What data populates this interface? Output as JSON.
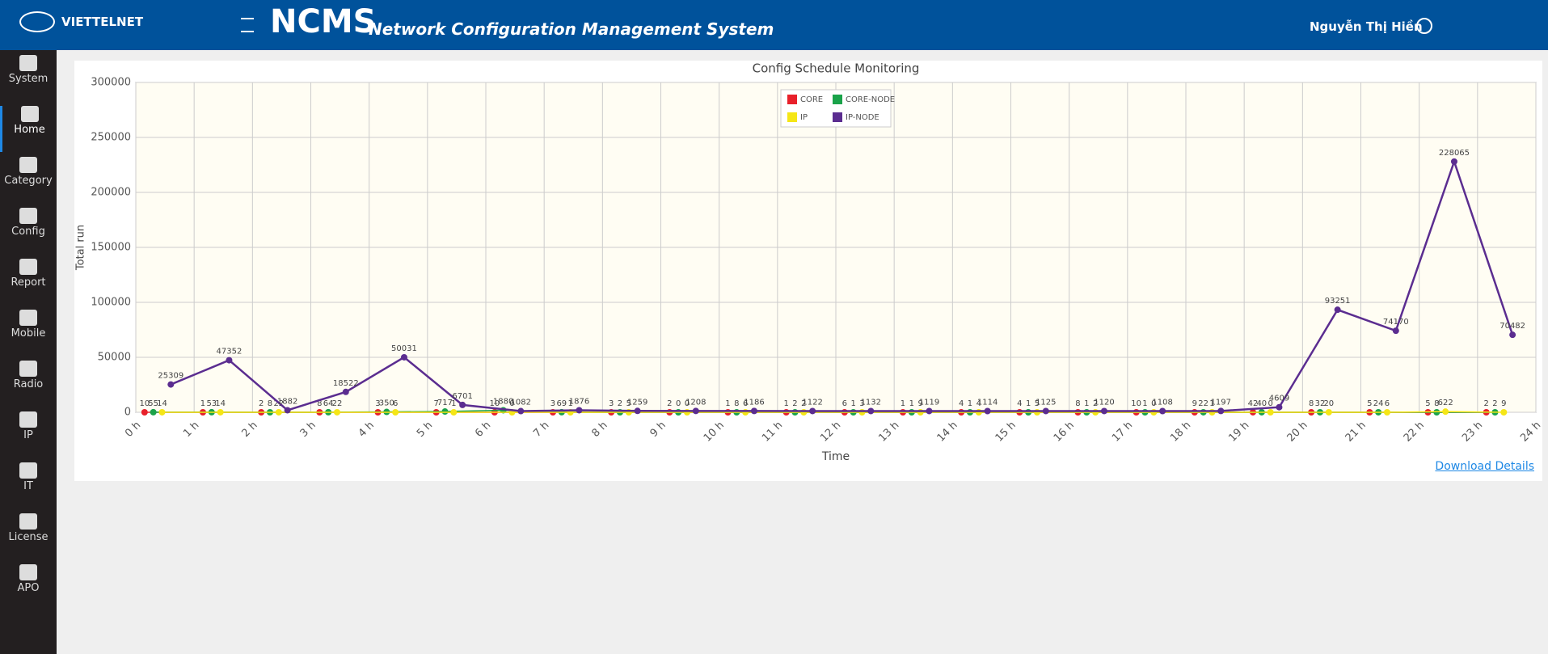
{
  "header": {
    "brand": "VIETTELNET",
    "title": "NCMS",
    "subtitle": "Network Configuration Management System",
    "user": "Nguyễn Thị Hiền"
  },
  "sidebar": [
    "System",
    "Home",
    "Category",
    "Config",
    "Report",
    "Mobile",
    "Radio",
    "IP",
    "IT",
    "License",
    "APO"
  ],
  "link": "Download Details",
  "chart_data": {
    "type": "line",
    "title": "Config Schedule Monitoring",
    "x_label": "Time",
    "y_label": "Total run",
    "xlim": [
      0,
      24
    ],
    "xticks": [
      {
        "value": 0,
        "label": "0 h"
      },
      {
        "value": 1,
        "label": "1 h"
      },
      {
        "value": 2,
        "label": "2 h"
      },
      {
        "value": 3,
        "label": "3 h"
      },
      {
        "value": 4,
        "label": "4 h"
      },
      {
        "value": 5,
        "label": "5 h"
      },
      {
        "value": 6,
        "label": "6 h"
      },
      {
        "value": 7,
        "label": "7 h"
      },
      {
        "value": 8,
        "label": "8 h"
      },
      {
        "value": 9,
        "label": "9 h"
      },
      {
        "value": 10,
        "label": "10 h"
      },
      {
        "value": 11,
        "label": "11 h"
      },
      {
        "value": 12,
        "label": "12 h"
      },
      {
        "value": 13,
        "label": "13 h"
      },
      {
        "value": 14,
        "label": "14 h"
      },
      {
        "value": 15,
        "label": "15 h"
      },
      {
        "value": 16,
        "label": "16 h"
      },
      {
        "value": 17,
        "label": "17 h"
      },
      {
        "value": 18,
        "label": "18 h"
      },
      {
        "value": 19,
        "label": "19 h"
      },
      {
        "value": 20,
        "label": "20 h"
      },
      {
        "value": 21,
        "label": "21 h"
      },
      {
        "value": 22,
        "label": "22 h"
      },
      {
        "value": 23,
        "label": "23 h"
      },
      {
        "value": 24,
        "label": "24 h"
      }
    ],
    "ylim": [
      0,
      300000
    ],
    "yticks": [
      0,
      50000,
      100000,
      150000,
      200000,
      250000,
      300000
    ],
    "grid": true,
    "series": [
      {
        "name": "CORE",
        "color": "#e8202a",
        "x": [
          0.15,
          1.15,
          2.15,
          3.15,
          4.15,
          5.15,
          6.15,
          7.15,
          8.15,
          9.15,
          10.15,
          11.15,
          12.15,
          13.15,
          14.15,
          15.15,
          16.15,
          17.15,
          18.15,
          19.15,
          20.15,
          21.15,
          22.15,
          23.15
        ],
        "values": [
          10,
          1,
          2,
          8,
          3,
          7,
          10,
          3,
          3,
          2,
          1,
          1,
          6,
          1,
          4,
          4,
          8,
          10,
          9,
          42,
          8,
          5,
          5,
          2
        ]
      },
      {
        "name": "CORE-NODE",
        "color": "#1aa34a",
        "x": [
          0.3,
          1.3,
          2.3,
          3.3,
          4.3,
          5.3,
          6.3,
          7.3,
          8.3,
          9.3,
          10.3,
          11.3,
          12.3,
          13.3,
          14.3,
          15.3,
          16.3,
          17.3,
          18.3,
          19.3,
          20.3,
          21.3,
          22.3,
          23.3
        ],
        "values": [
          55,
          53,
          8,
          64,
          350,
          717,
          1880,
          69,
          2,
          0,
          8,
          2,
          1,
          1,
          1,
          1,
          1,
          1,
          22,
          40,
          32,
          24,
          8,
          2
        ]
      },
      {
        "name": "IP",
        "color": "#f5e616",
        "x": [
          0.45,
          1.45,
          2.45,
          3.45,
          4.45,
          5.45,
          6.45,
          7.45,
          8.45,
          9.45,
          10.45,
          11.45,
          12.45,
          13.45,
          14.45,
          15.45,
          16.45,
          17.45,
          18.45,
          19.45,
          20.45,
          21.45,
          22.45,
          23.45
        ],
        "values": [
          14,
          14,
          22,
          22,
          6,
          1,
          0,
          1,
          5,
          0,
          6,
          2,
          3,
          9,
          4,
          5,
          2,
          0,
          1,
          0,
          20,
          6,
          622,
          9
        ]
      },
      {
        "name": "IP-NODE",
        "color": "#5b2d90",
        "x": [
          0.6,
          1.6,
          2.6,
          3.6,
          4.6,
          5.6,
          6.6,
          7.6,
          8.6,
          9.6,
          10.6,
          11.6,
          12.6,
          13.6,
          14.6,
          15.6,
          16.6,
          17.6,
          18.6,
          19.6,
          20.6,
          21.6,
          22.6,
          23.6
        ],
        "values": [
          25309,
          47352,
          1882,
          18522,
          50031,
          6701,
          1082,
          1876,
          1259,
          1208,
          1186,
          1122,
          1132,
          1119,
          1114,
          1125,
          1120,
          1108,
          1197,
          4609,
          93251,
          74170,
          228065,
          70482
        ]
      }
    ]
  }
}
